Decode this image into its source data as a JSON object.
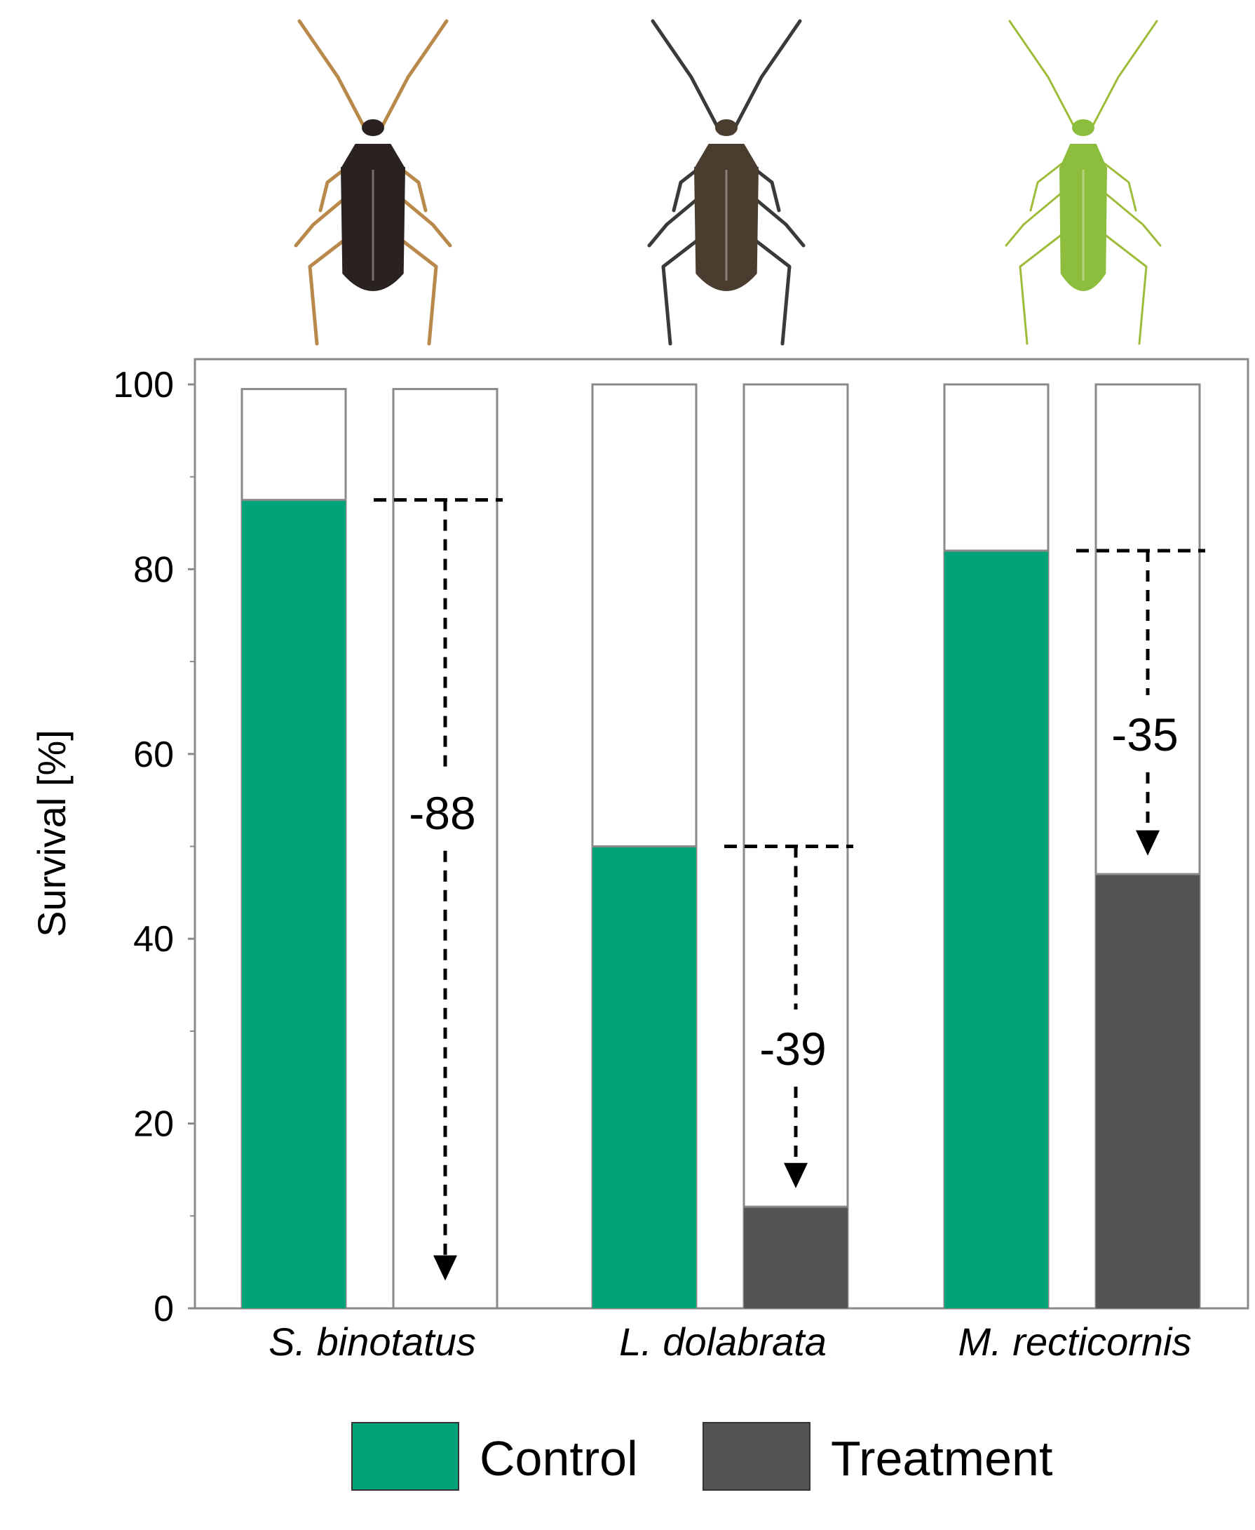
{
  "chart_data": {
    "type": "bar",
    "title": "",
    "xlabel": "",
    "ylabel": "Survival [%]",
    "ylim": [
      0,
      100
    ],
    "yticks": [
      0,
      20,
      40,
      60,
      80,
      100
    ],
    "y_minor_ticks": [
      10,
      30,
      50,
      70,
      90
    ],
    "grid": false,
    "legend_position": "bottom",
    "categories": [
      "S. binotatus",
      "L. dolabrata",
      "M. recticornis"
    ],
    "bar_max": [
      99.5,
      100,
      100
    ],
    "series": [
      {
        "name": "Control",
        "color": "#00a478",
        "values": [
          87.5,
          50,
          82
        ]
      },
      {
        "name": "Treatment",
        "color": "#545454",
        "values": [
          0,
          11,
          47
        ]
      }
    ],
    "annotations": [
      {
        "category": "S. binotatus",
        "label": "-88",
        "from": 87.5,
        "to": 3
      },
      {
        "category": "L. dolabrata",
        "label": "-39",
        "from": 50,
        "to": 13
      },
      {
        "category": "M. recticornis",
        "label": "-35",
        "from": 82,
        "to": 49
      }
    ],
    "insect_colors": [
      "#2a2220",
      "#4a3d30",
      "#8cbd3c"
    ]
  }
}
